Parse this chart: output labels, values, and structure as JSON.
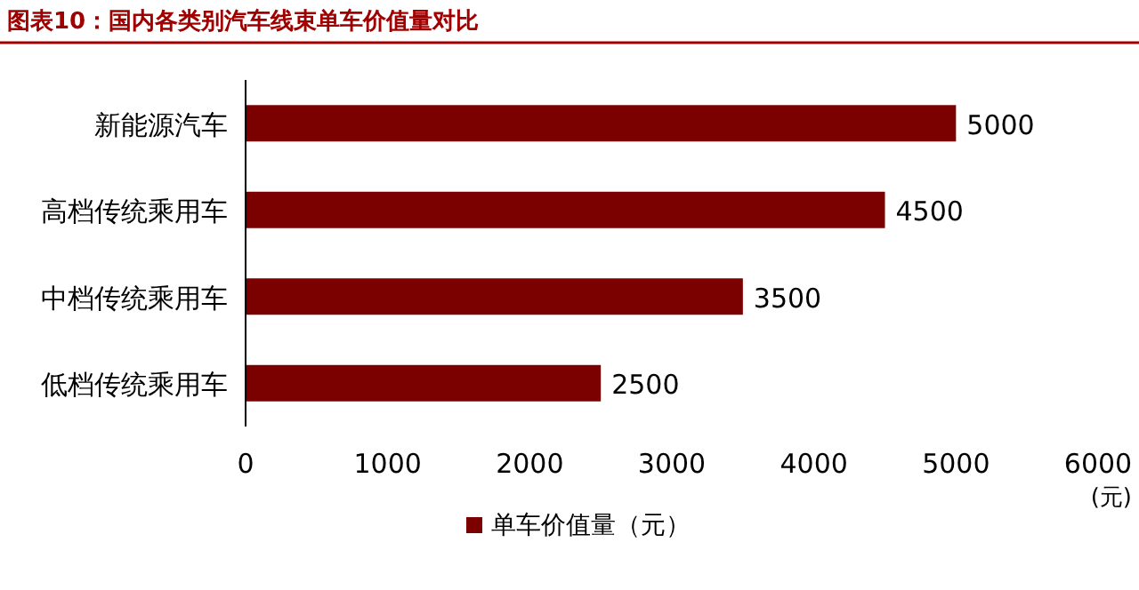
{
  "chart_data": {
    "type": "bar",
    "orientation": "horizontal",
    "title": "图表10：国内各类别汽车线束单车价值量对比",
    "xlabel": "(元)",
    "categories": [
      "新能源汽车",
      "高档传统乘用车",
      "中档传统乘用车",
      "低档传统乘用车"
    ],
    "series": [
      {
        "name": "单车价值量（元）",
        "color": "#7b0000",
        "values": [
          5000,
          4500,
          3500,
          2500
        ]
      }
    ],
    "xlim": [
      0,
      6000
    ],
    "xticks": [
      0,
      1000,
      2000,
      3000,
      4000,
      5000,
      6000
    ],
    "data_labels": true,
    "grid": false,
    "legend": "bottom"
  }
}
